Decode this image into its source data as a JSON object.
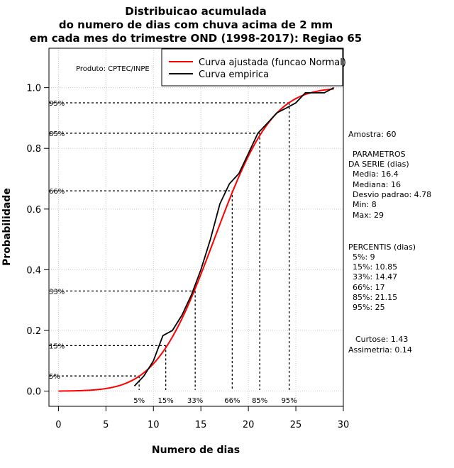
{
  "chart_data": {
    "type": "line",
    "title_lines": [
      "Distribuicao acumulada",
      "do numero de dias com chuva acima de 2 mm",
      "em cada mes do trimestre OND (1998-2017): Regiao 65"
    ],
    "xlabel": "Numero de dias",
    "ylabel": "Probabilidade",
    "xlim": [
      -1,
      30
    ],
    "ylim": [
      -0.05,
      1.13
    ],
    "xticks": [
      0,
      5,
      10,
      15,
      20,
      25,
      30
    ],
    "yticks": [
      0.0,
      0.2,
      0.4,
      0.6,
      0.8,
      1.0
    ],
    "ytick_labels": [
      "0.0",
      "0.2",
      "0.4",
      "0.6",
      "0.8",
      "1.0"
    ],
    "grid": true,
    "product_label": "Produto: CPTEC/INPE",
    "legend": {
      "position": "top-right",
      "entries": [
        {
          "label": "Curva ajustada (funcao Normal)",
          "color": "#ff0000"
        },
        {
          "label": "Curva empirica",
          "color": "#000000"
        }
      ]
    },
    "fitted_normal": {
      "mean": 16.4,
      "sd": 4.78,
      "x_range": [
        0,
        29
      ],
      "color": "#ff0000"
    },
    "empirical_series": {
      "name": "Curva empirica",
      "color": "#000000",
      "x": [
        8,
        9,
        10,
        11,
        12,
        13,
        14,
        15,
        16,
        17,
        18,
        19,
        20,
        21,
        22,
        23,
        24,
        25,
        26,
        27,
        28,
        29
      ],
      "y": [
        0.017,
        0.05,
        0.1,
        0.183,
        0.2,
        0.25,
        0.317,
        0.4,
        0.5,
        0.617,
        0.683,
        0.717,
        0.783,
        0.85,
        0.883,
        0.917,
        0.933,
        0.95,
        0.983,
        0.983,
        0.983,
        1.0
      ]
    },
    "percentiles": [
      {
        "label": "5%",
        "x": 9,
        "p": 0.05
      },
      {
        "label": "15%",
        "x": 10.85,
        "p": 0.15
      },
      {
        "label": "33%",
        "x": 14.47,
        "p": 0.33
      },
      {
        "label": "66%",
        "x": 17,
        "p": 0.66
      },
      {
        "label": "85%",
        "x": 21.15,
        "p": 0.85
      },
      {
        "label": "95%",
        "x": 25,
        "p": 0.95
      }
    ],
    "percentile_drop_x": [
      8.5,
      11.3,
      14.4,
      18.3,
      21.2,
      24.3
    ],
    "stats_text": {
      "amostra": "Amostra: 60",
      "param_title_1": "PARAMETROS",
      "param_title_2": "DA SERIE (dias)",
      "media": "Media: 16.4",
      "mediana": "Mediana: 16",
      "desvio": "Desvio padrao: 4.78",
      "min": "Min: 8",
      "max": "Max: 29",
      "perc_title": "PERCENTIS (dias)",
      "p5": "5%: 9",
      "p15": "15%: 10.85",
      "p33": "33%: 14.47",
      "p66": "66%: 17",
      "p85": "85%: 21.15",
      "p95": "95%: 25",
      "curtose": "Curtose: 1.43",
      "assimetria": "Assimetria: 0.14"
    }
  }
}
